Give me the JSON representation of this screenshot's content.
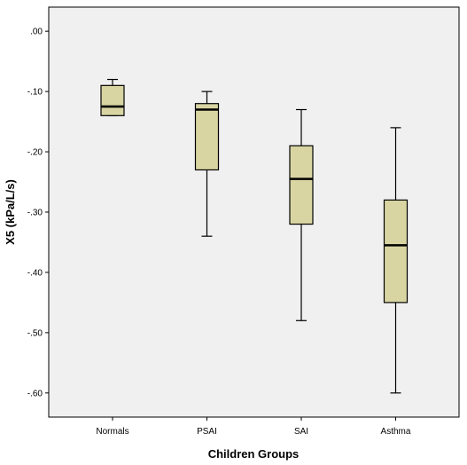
{
  "chart_data": {
    "type": "box",
    "title": "",
    "xlabel": "Children Groups",
    "ylabel": "X5 (kPa/L/s)",
    "ylim": [
      -0.64,
      0.04
    ],
    "yticks": [
      0.0,
      -0.1,
      -0.2,
      -0.3,
      -0.4,
      -0.5,
      -0.6
    ],
    "ytick_labels": [
      ".00",
      "-.10",
      "-.20",
      "-.30",
      "-.40",
      "-.50",
      "-.60"
    ],
    "categories": [
      "Normals",
      "PSAI",
      "SAI",
      "Asthma"
    ],
    "boxes": [
      {
        "category": "Normals",
        "min": -0.14,
        "q1": -0.14,
        "median": -0.125,
        "q3": -0.09,
        "max": -0.08
      },
      {
        "category": "PSAI",
        "min": -0.34,
        "q1": -0.23,
        "median": -0.13,
        "q3": -0.12,
        "max": -0.1
      },
      {
        "category": "SAI",
        "min": -0.48,
        "q1": -0.32,
        "median": -0.245,
        "q3": -0.19,
        "max": -0.13
      },
      {
        "category": "Asthma",
        "min": -0.6,
        "q1": -0.45,
        "median": -0.355,
        "q3": -0.28,
        "max": -0.16
      }
    ],
    "grid": false,
    "box_color": "#d9d5a3",
    "plot_background": "#f0f0f0",
    "line_color": "#000000"
  }
}
